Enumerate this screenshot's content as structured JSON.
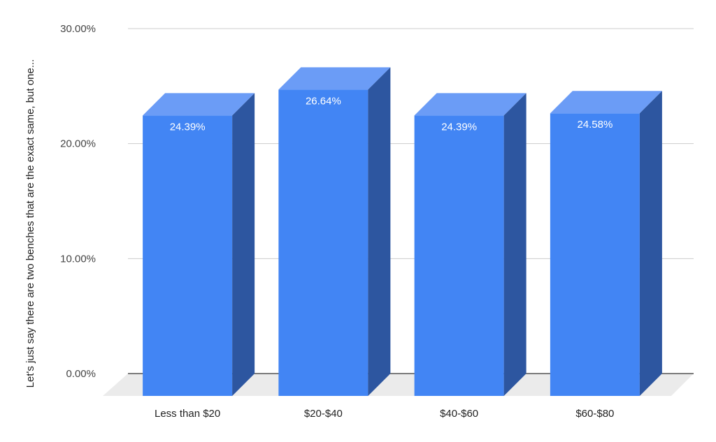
{
  "chart_data": {
    "type": "bar",
    "style": "3d",
    "title": "",
    "xlabel": "",
    "ylabel": "Let's just say there are two benches that are the exact same, but one...",
    "categories": [
      "Less than $20",
      "$20-$40",
      "$40-$60",
      "$60-$80"
    ],
    "values": [
      24.39,
      26.64,
      24.39,
      24.58
    ],
    "value_labels": [
      "24.39%",
      "26.64%",
      "24.39%",
      "24.58%"
    ],
    "ylim": [
      0,
      30
    ],
    "yticks": [
      0,
      10,
      20,
      30
    ],
    "ytick_labels": [
      "0.00%",
      "10.00%",
      "20.00%",
      "30.00%"
    ],
    "grid": true,
    "legend": "none",
    "colors": {
      "bar_front": "#4285f4",
      "bar_top": "#6b9cf6",
      "bar_side": "#2d56a0",
      "floor": "#ebebeb",
      "grid": "#cccccc",
      "baseline": "#333333"
    }
  }
}
